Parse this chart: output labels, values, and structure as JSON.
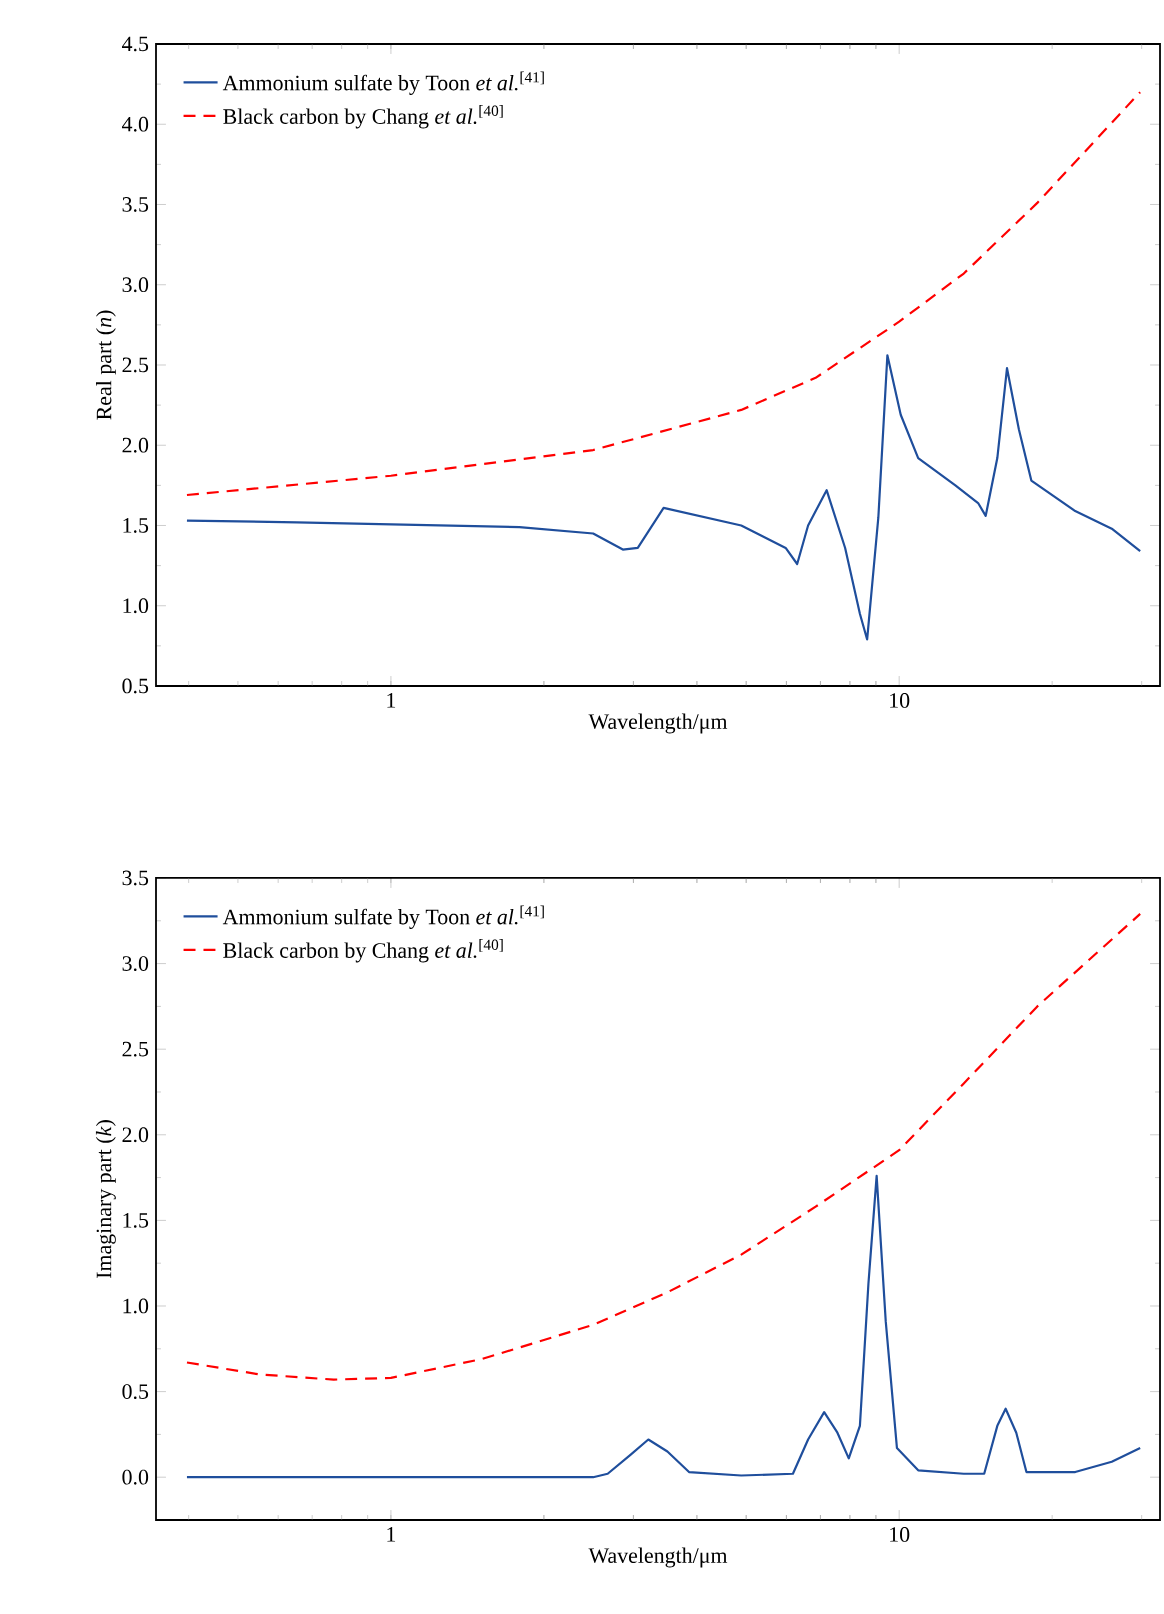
{
  "chart_data": [
    {
      "type": "line",
      "xlabel": "Wavelength/μm",
      "ylabel": "Real part (*n*)",
      "log": "x",
      "legend": "top left",
      "marker": "none",
      "xlim": [
        0.345,
        32.6
      ],
      "ylim": [
        0.5,
        4.5
      ],
      "xticks": [
        {
          "value": 0.4,
          "label": null
        },
        {
          "value": 0.5,
          "label": null
        },
        {
          "value": 0.6,
          "label": null
        },
        {
          "value": 0.7,
          "label": null
        },
        {
          "value": 0.8,
          "label": null
        },
        {
          "value": 0.9,
          "label": null
        },
        1,
        {
          "value": 2,
          "label": null
        },
        {
          "value": 3,
          "label": null
        },
        {
          "value": 4,
          "label": null
        },
        {
          "value": 5,
          "label": null
        },
        {
          "value": 6,
          "label": null
        },
        {
          "value": 7,
          "label": null
        },
        {
          "value": 8,
          "label": null
        },
        {
          "value": 9,
          "label": null
        },
        10,
        {
          "value": 20,
          "label": null
        },
        {
          "value": 30,
          "label": null
        }
      ],
      "yticks": [
        0.5,
        {
          "value": 1,
          "label": "1.0"
        },
        1.5,
        {
          "value": 2,
          "label": "2.0"
        },
        2.5,
        {
          "value": 3,
          "label": "3.0"
        },
        3.5,
        {
          "value": 4,
          "label": "4.0"
        },
        4.5
      ],
      "series": [
        {
          "name": "Ammonium sulfate by Toon *et al.*$^{[41]}$",
          "color": "#1f4e9c",
          "line_style": "solid",
          "x": [
            0.397,
            0.653,
            1.79,
            2.5,
            2.86,
            3.06,
            3.44,
            4.89,
            5.98,
            6.3,
            6.62,
            7.2,
            7.83,
            8.37,
            8.65,
            9.1,
            9.48,
            10.07,
            10.9,
            12.9,
            14.3,
            14.8,
            15.6,
            16.3,
            17.2,
            18.2,
            22.2,
            26.2,
            29.8
          ],
          "values": [
            1.53,
            1.52,
            1.49,
            1.45,
            1.35,
            1.36,
            1.61,
            1.5,
            1.36,
            1.26,
            1.5,
            1.72,
            1.36,
            0.95,
            0.79,
            1.55,
            2.56,
            2.19,
            1.92,
            1.75,
            1.64,
            1.56,
            1.92,
            2.48,
            2.1,
            1.78,
            1.59,
            1.48,
            1.34
          ]
        },
        {
          "name": "Black carbon by Chang *et al.*$^{[40]}$",
          "color": "#ff0000",
          "line_style": "dashed",
          "x": [
            0.397,
            1,
            2.5,
            4.89,
            6.85,
            10,
            13.4,
            18.7,
            29.8
          ],
          "values": [
            1.69,
            1.81,
            1.97,
            2.22,
            2.42,
            2.77,
            3.07,
            3.51,
            4.2
          ]
        }
      ]
    },
    {
      "type": "line",
      "xlabel": "Wavelength/μm",
      "ylabel": "Imaginary part (*k*)",
      "log": "x",
      "legend": "top left",
      "marker": "none",
      "xlim": [
        0.345,
        32.6
      ],
      "ylim": [
        -0.25,
        3.5
      ],
      "xticks": [
        {
          "value": 0.4,
          "label": null
        },
        {
          "value": 0.5,
          "label": null
        },
        {
          "value": 0.6,
          "label": null
        },
        {
          "value": 0.7,
          "label": null
        },
        {
          "value": 0.8,
          "label": null
        },
        {
          "value": 0.9,
          "label": null
        },
        1,
        {
          "value": 2,
          "label": null
        },
        {
          "value": 3,
          "label": null
        },
        {
          "value": 4,
          "label": null
        },
        {
          "value": 5,
          "label": null
        },
        {
          "value": 6,
          "label": null
        },
        {
          "value": 7,
          "label": null
        },
        {
          "value": 8,
          "label": null
        },
        {
          "value": 9,
          "label": null
        },
        10,
        {
          "value": 20,
          "label": null
        },
        {
          "value": 30,
          "label": null
        }
      ],
      "yticks": [
        {
          "value": 0,
          "label": "0.0"
        },
        0.5,
        {
          "value": 1,
          "label": "1.0"
        },
        1.5,
        {
          "value": 2,
          "label": "2.0"
        },
        2.5,
        {
          "value": 3,
          "label": "3.0"
        },
        3.5
      ],
      "series": [
        {
          "name": "Ammonium sulfate by Toon *et al.*$^{[41]}$",
          "color": "#1f4e9c",
          "line_style": "solid",
          "x": [
            0.397,
            2.5,
            2.67,
            2.96,
            3.21,
            3.5,
            3.86,
            4.89,
            6.18,
            6.62,
            7.12,
            7.56,
            7.96,
            8.37,
            8.7,
            9.03,
            9.41,
            9.9,
            10.9,
            13.4,
            14.7,
            15.6,
            16.2,
            17.0,
            17.8,
            22.2,
            26.2,
            29.8
          ],
          "values": [
            0.0,
            0.0,
            0.02,
            0.13,
            0.22,
            0.15,
            0.03,
            0.01,
            0.02,
            0.22,
            0.38,
            0.26,
            0.11,
            0.3,
            1.13,
            1.76,
            0.91,
            0.17,
            0.04,
            0.02,
            0.02,
            0.3,
            0.4,
            0.26,
            0.03,
            0.03,
            0.09,
            0.17
          ]
        },
        {
          "name": "Black carbon by Chang *et al.*$^{[40]}$",
          "color": "#ff0000",
          "line_style": "dashed",
          "x": [
            0.397,
            0.552,
            0.772,
            1,
            1.51,
            2.5,
            3.5,
            4.89,
            6.85,
            10,
            13.4,
            18.7,
            29.8
          ],
          "values": [
            0.67,
            0.6,
            0.57,
            0.58,
            0.69,
            0.89,
            1.08,
            1.3,
            1.58,
            1.91,
            2.3,
            2.75,
            3.29
          ]
        }
      ]
    }
  ]
}
